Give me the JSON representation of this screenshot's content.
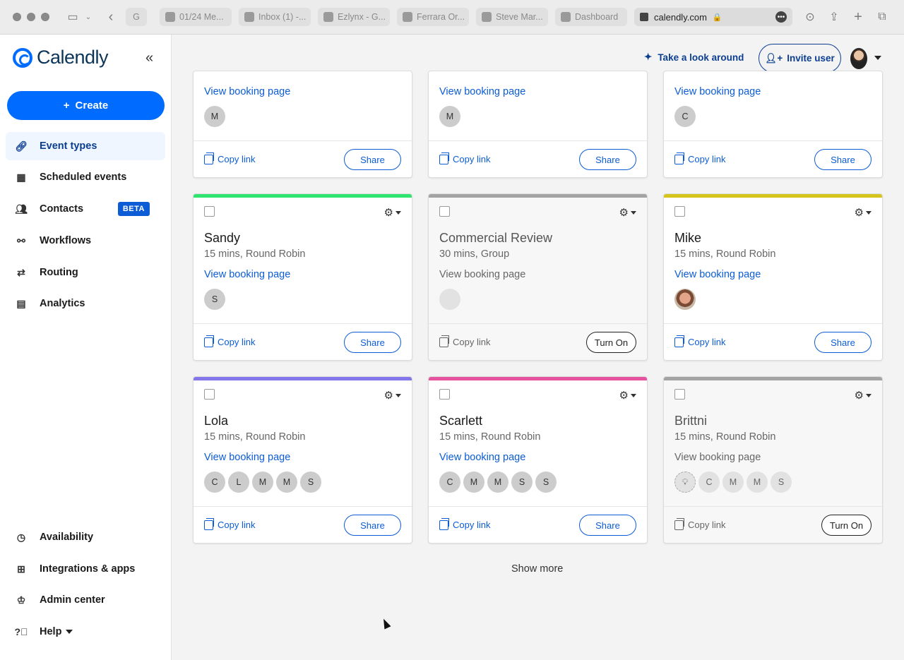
{
  "browser": {
    "tabs": [
      {
        "label": "G"
      },
      {
        "label": "01/24 Me..."
      },
      {
        "label": "Inbox (1) -..."
      },
      {
        "label": "Ezlynx - G..."
      },
      {
        "label": "Ferrara Or..."
      },
      {
        "label": "Steve Mar..."
      },
      {
        "label": "Dashboard"
      }
    ],
    "url": "calendly.com"
  },
  "sidebar": {
    "logo": "Calendly",
    "create_label": "Create",
    "items": [
      {
        "label": "Event types",
        "icon": "link-icon"
      },
      {
        "label": "Scheduled events",
        "icon": "calendar-icon"
      },
      {
        "label": "Contacts",
        "icon": "contacts-icon",
        "badge": "BETA"
      },
      {
        "label": "Workflows",
        "icon": "workflow-icon"
      },
      {
        "label": "Routing",
        "icon": "routing-icon"
      },
      {
        "label": "Analytics",
        "icon": "analytics-icon"
      }
    ],
    "bottom": [
      {
        "label": "Availability",
        "icon": "clock-icon"
      },
      {
        "label": "Integrations & apps",
        "icon": "grid-icon"
      },
      {
        "label": "Admin center",
        "icon": "crown-icon"
      },
      {
        "label": "Help",
        "icon": "help-icon"
      }
    ]
  },
  "header": {
    "look_around": "Take a look around",
    "invite": "Invite user"
  },
  "cards_top": [
    {
      "view": "View booking page",
      "avatars": [
        "M"
      ],
      "copy": "Copy link",
      "action": "Share"
    },
    {
      "view": "View booking page",
      "avatars": [
        "M"
      ],
      "copy": "Copy link",
      "action": "Share"
    },
    {
      "view": "View booking page",
      "avatars": [
        "C"
      ],
      "copy": "Copy link",
      "action": "Share"
    }
  ],
  "cards_mid": [
    {
      "title": "Sandy",
      "sub": "15 mins, Round Robin",
      "view": "View booking page",
      "avatars": [
        "S"
      ],
      "copy": "Copy link",
      "action": "Share",
      "color": "#2fe56f"
    },
    {
      "title": "Commercial Review",
      "sub": "30 mins, Group",
      "view": "View booking page",
      "copy": "Copy link",
      "action": "Turn On",
      "color": "#a3a3a3"
    },
    {
      "title": "Mike",
      "sub": "15 mins, Round Robin",
      "view": "View booking page",
      "copy": "Copy link",
      "action": "Share",
      "color": "#d4c41c"
    }
  ],
  "cards_bot": [
    {
      "title": "Lola",
      "sub": "15 mins, Round Robin",
      "view": "View booking page",
      "avatars": [
        "C",
        "L",
        "M",
        "M",
        "S"
      ],
      "copy": "Copy link",
      "action": "Share",
      "color": "#8376ea"
    },
    {
      "title": "Scarlett",
      "sub": "15 mins, Round Robin",
      "view": "View booking page",
      "avatars": [
        "C",
        "M",
        "M",
        "S",
        "S"
      ],
      "copy": "Copy link",
      "action": "Share",
      "color": "#e5539e"
    },
    {
      "title": "Brittni",
      "sub": "15 mins, Round Robin",
      "view": "View booking page",
      "avatars": [
        "C",
        "M",
        "M",
        "S"
      ],
      "copy": "Copy link",
      "action": "Turn On",
      "color": "#a3a3a3"
    }
  ],
  "show_more": "Show more"
}
